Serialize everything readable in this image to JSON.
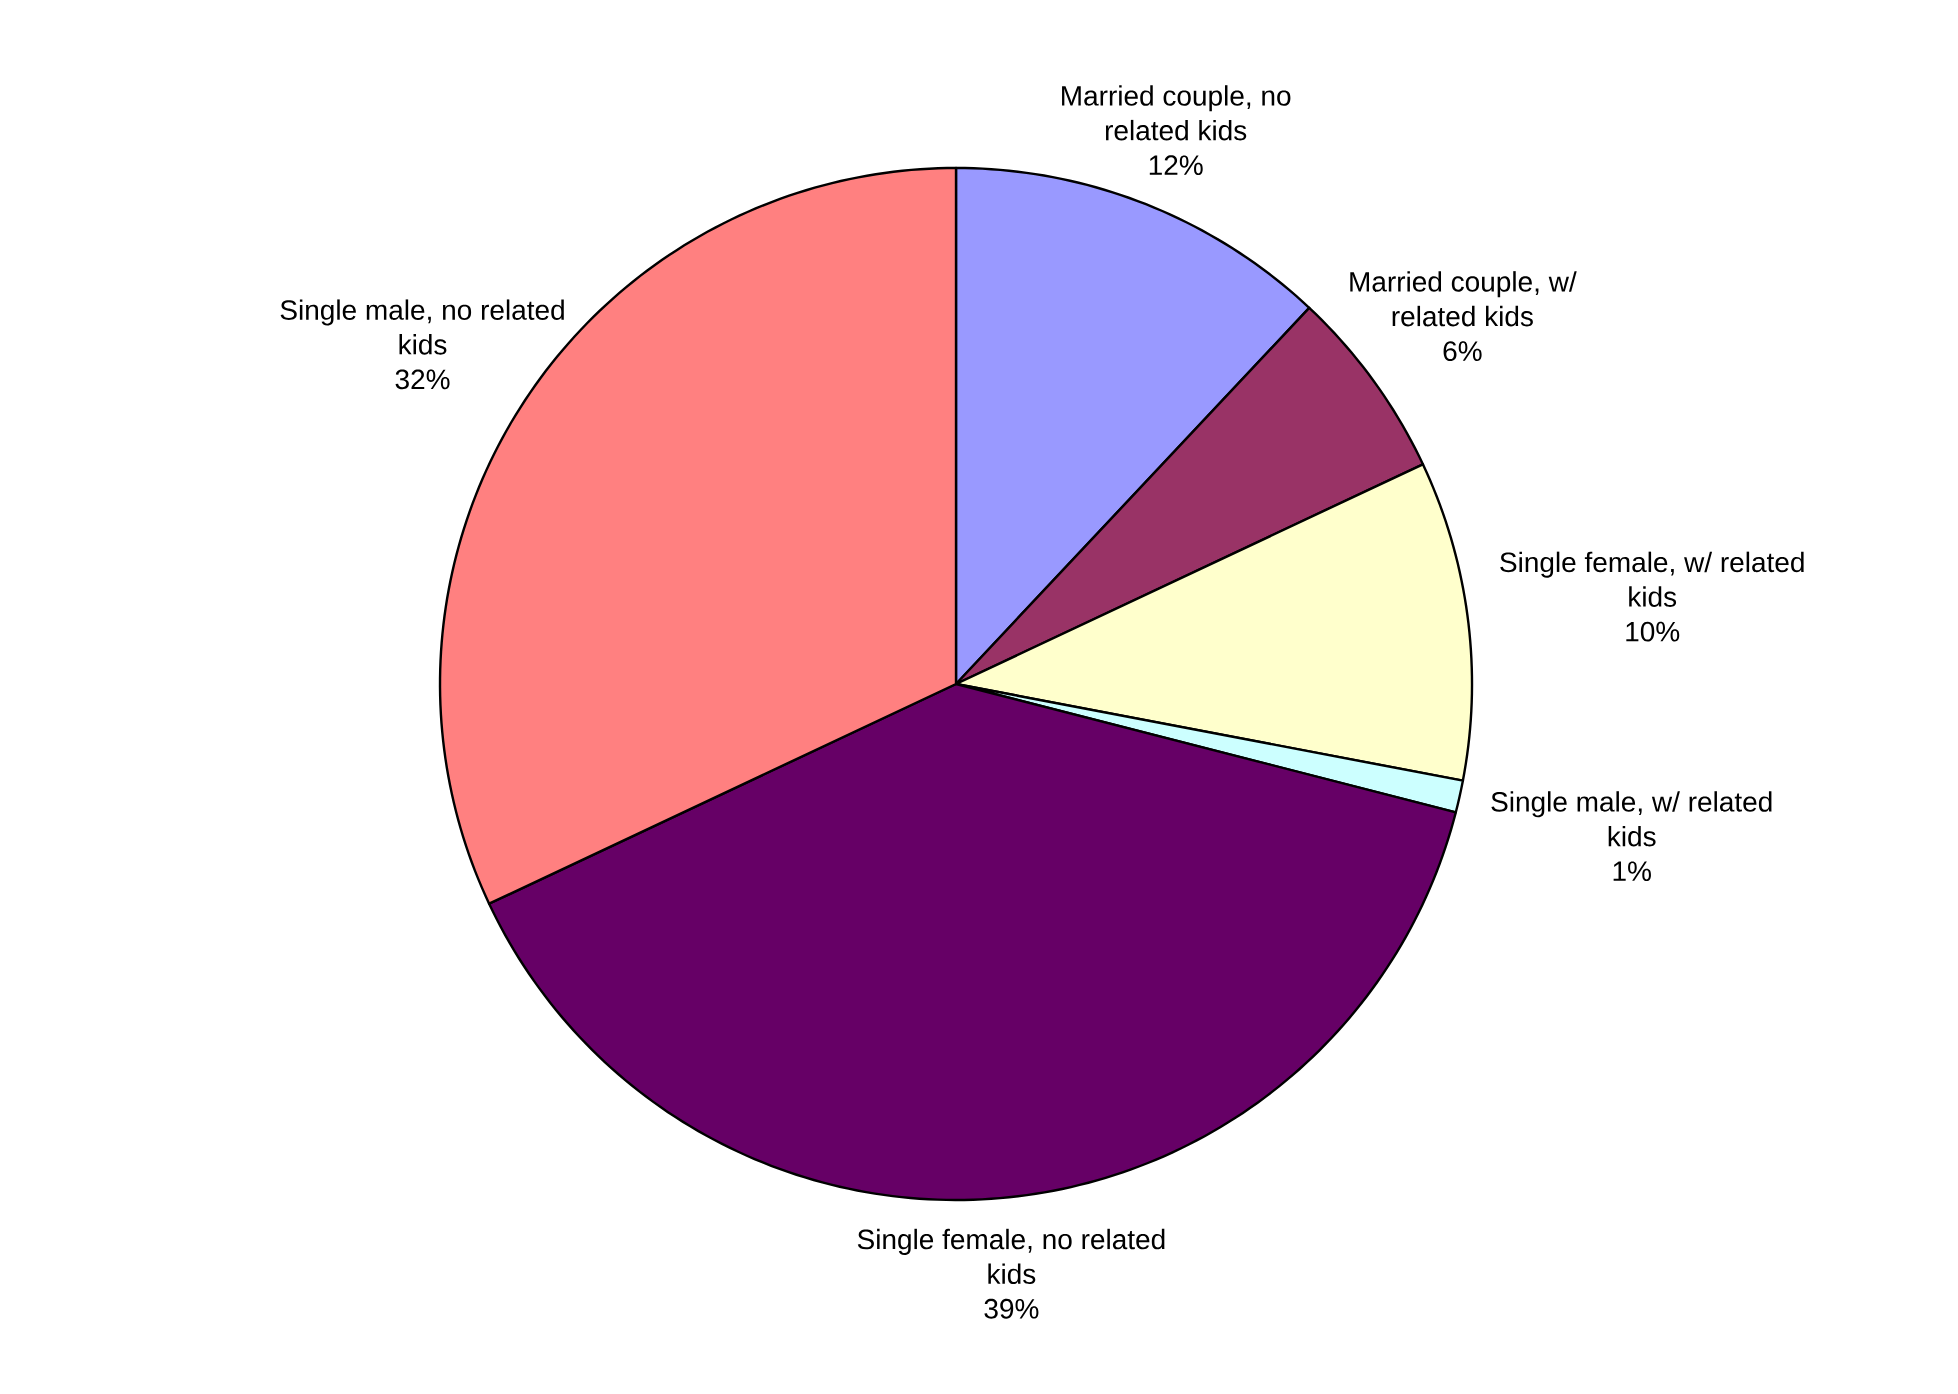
{
  "chart_data": {
    "type": "pie",
    "categories": [
      "Married couple, no related kids",
      "Married couple, w/ related kids",
      "Single female, w/ related kids",
      "Single male, w/ related kids",
      "Single female, no related kids",
      "Single male, no related kids"
    ],
    "values": [
      12,
      6,
      10,
      1,
      39,
      32
    ],
    "value_labels": [
      "12%",
      "6%",
      "10%",
      "1%",
      "39%",
      "32%"
    ],
    "colors": [
      "#9999ff",
      "#993366",
      "#ffffcc",
      "#ccffff",
      "#660066",
      "#ff8080"
    ]
  }
}
